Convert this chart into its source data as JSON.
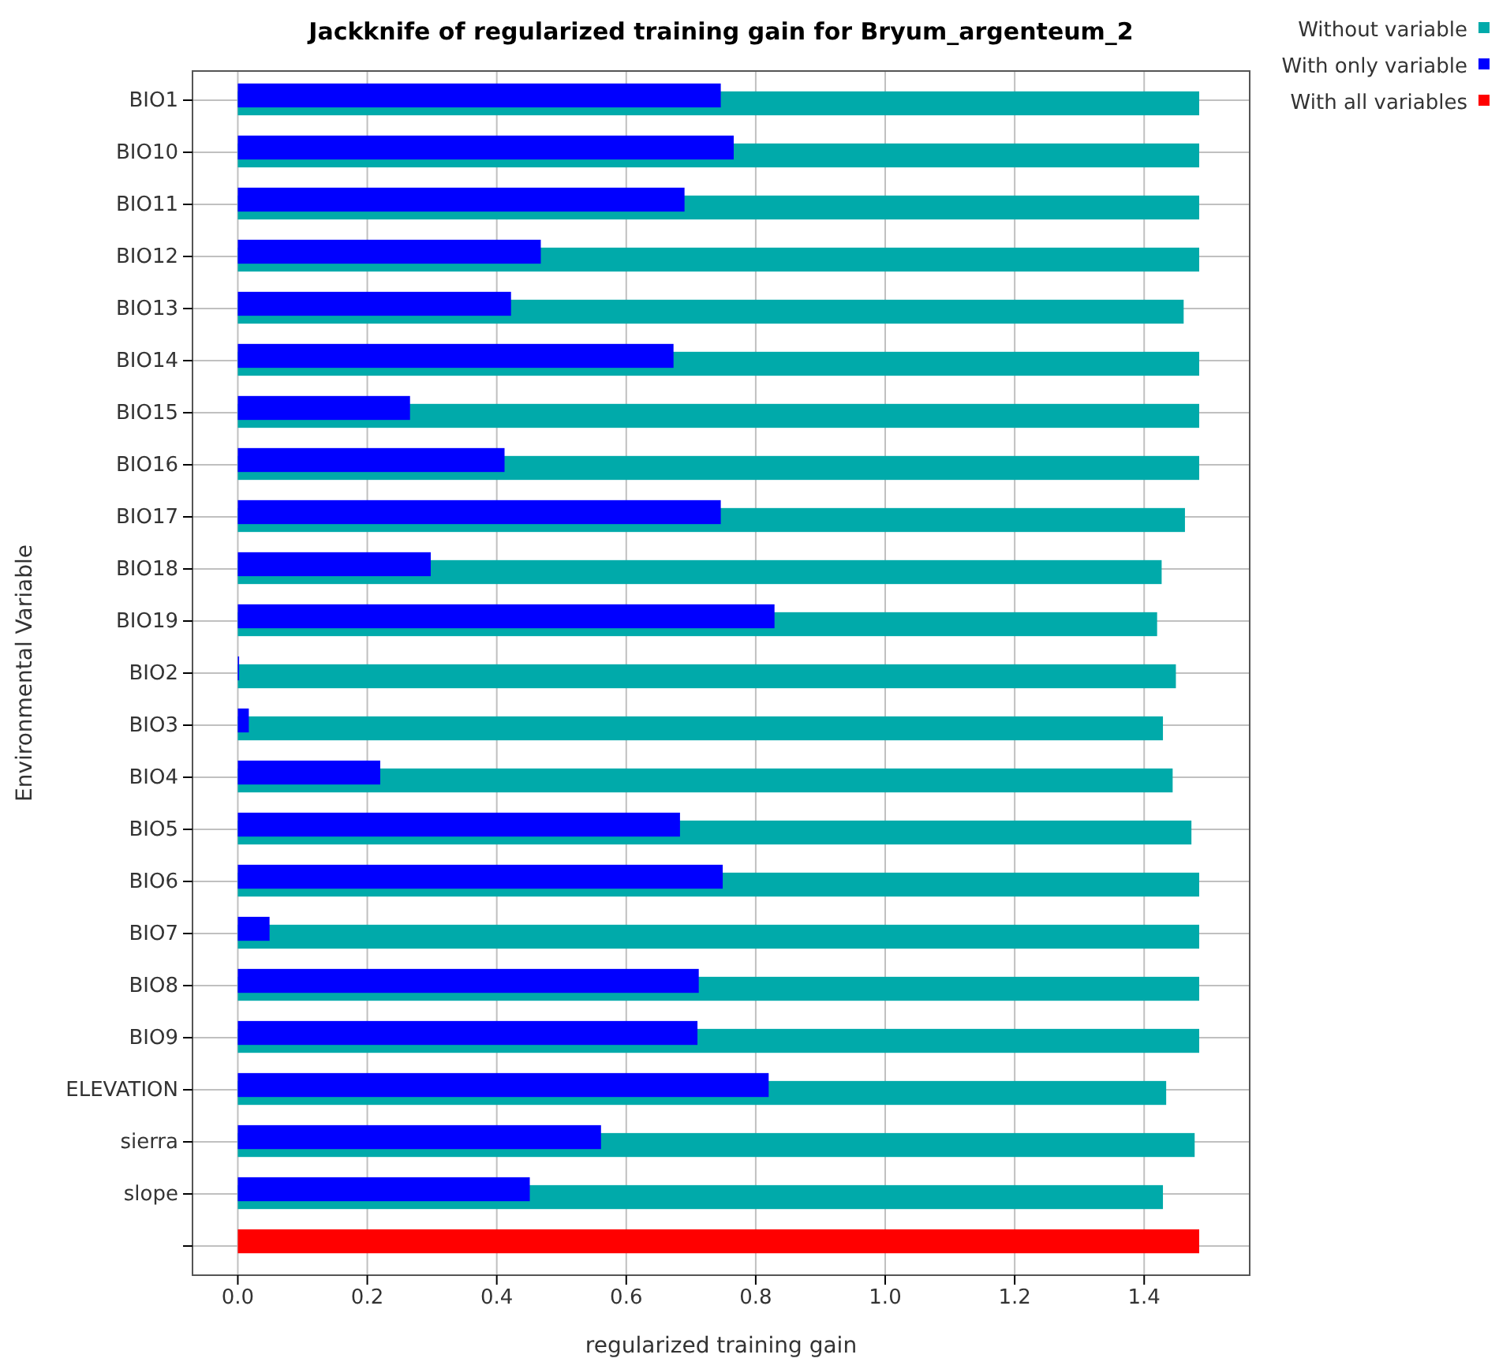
{
  "chart_data": {
    "type": "bar",
    "orientation": "horizontal",
    "title": "Jackknife of regularized training gain for Bryum_argenteum_2",
    "xlabel": "regularized training gain",
    "ylabel": "Environmental Variable",
    "categories": [
      "BIO1",
      "BIO10",
      "BIO11",
      "BIO12",
      "BIO13",
      "BIO14",
      "BIO15",
      "BIO16",
      "BIO17",
      "BIO18",
      "BIO19",
      "BIO2",
      "BIO3",
      "BIO4",
      "BIO5",
      "BIO6",
      "BIO7",
      "BIO8",
      "BIO9",
      "ELEVATION",
      "sierra",
      "slope",
      null
    ],
    "series": [
      {
        "name": "Without variable",
        "color": "#00aaaa",
        "values": [
          1.485,
          1.485,
          1.485,
          1.485,
          1.461,
          1.485,
          1.485,
          1.485,
          1.463,
          1.427,
          1.42,
          1.449,
          1.429,
          1.444,
          1.473,
          1.485,
          1.485,
          1.485,
          1.485,
          1.434,
          1.478,
          1.429,
          null
        ]
      },
      {
        "name": "With only variable",
        "color": "#0000ff",
        "values": [
          0.746,
          0.766,
          0.69,
          0.468,
          0.422,
          0.673,
          0.266,
          0.412,
          0.746,
          0.298,
          0.829,
          0.002,
          0.017,
          0.22,
          0.683,
          0.749,
          0.049,
          0.712,
          0.71,
          0.82,
          0.561,
          0.451,
          null
        ]
      },
      {
        "name": "With all variables",
        "color": "#ff0000",
        "values": [
          null,
          null,
          null,
          null,
          null,
          null,
          null,
          null,
          null,
          null,
          null,
          null,
          null,
          null,
          null,
          null,
          null,
          null,
          null,
          null,
          null,
          null,
          1.485
        ]
      }
    ],
    "xlim": [
      -0.07,
      1.563
    ],
    "xticks": [
      {
        "value": 0,
        "label": "0.0"
      },
      0.2,
      0.4,
      0.6,
      0.8,
      {
        "value": 1,
        "label": "1.0"
      },
      1.2,
      1.4
    ],
    "grid": true,
    "legend": "top right"
  }
}
